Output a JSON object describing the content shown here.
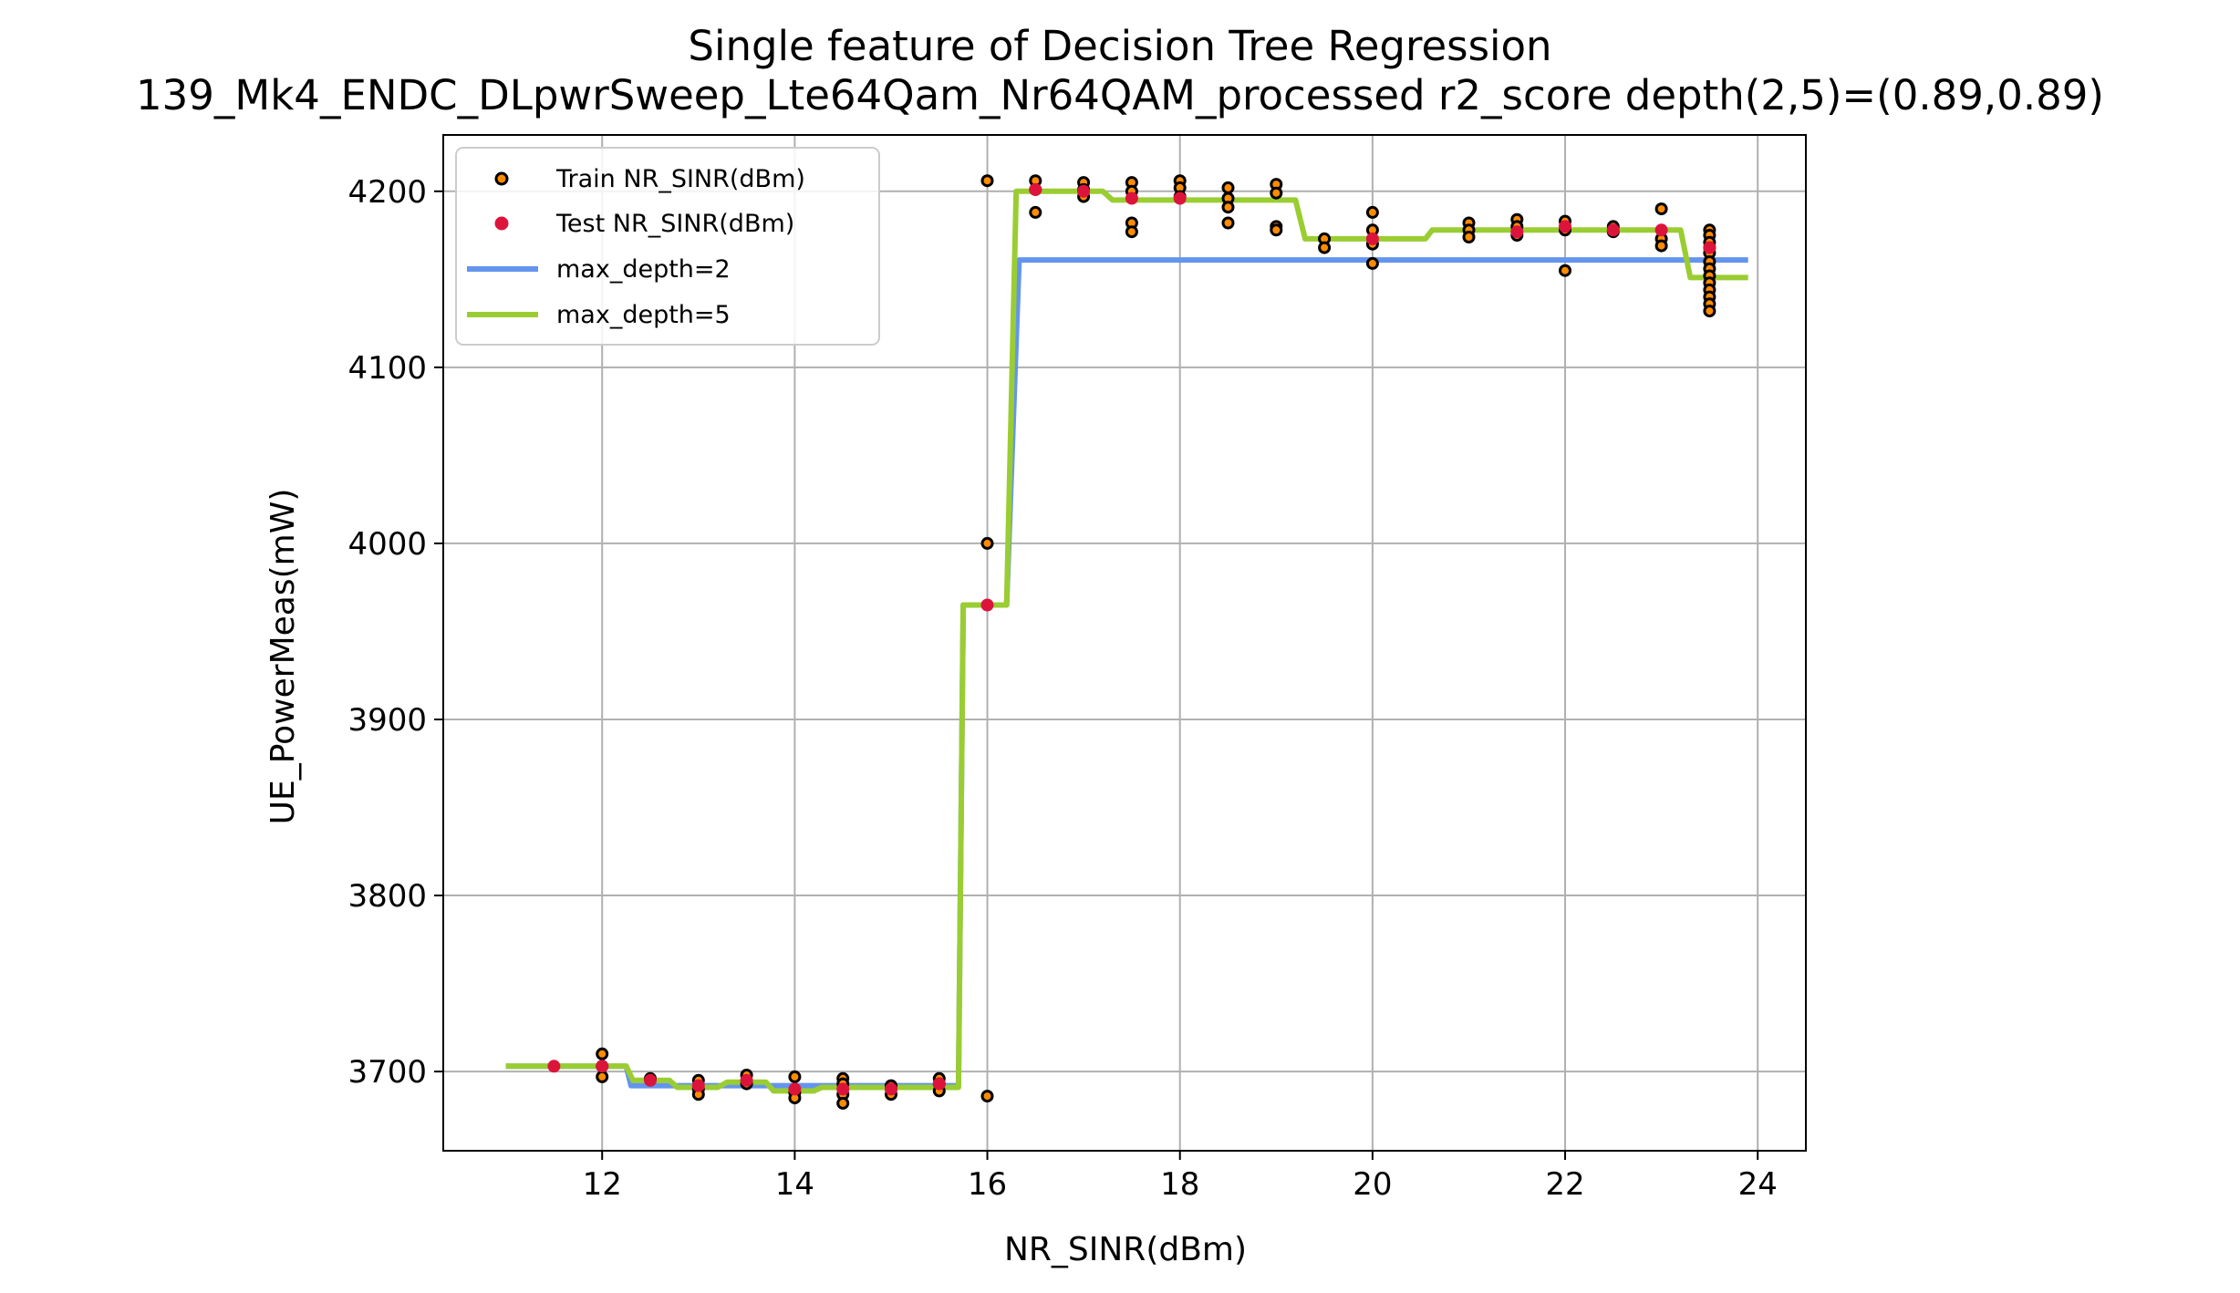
{
  "chart_data": {
    "type": "scatter",
    "title": "Single feature of Decision Tree Regression",
    "subtitle": "139_Mk4_ENDC_DLpwrSweep_Lte64Qam_Nr64QAM_processed r2_score depth(2,5)=(0.89,0.89)",
    "xlabel": "NR_SINR(dBm)",
    "ylabel": "UE_PowerMeas(mW)",
    "xlim": [
      10.35,
      24.5
    ],
    "ylim": [
      3655,
      4232
    ],
    "xticks": [
      12,
      14,
      16,
      18,
      20,
      22,
      24
    ],
    "yticks": [
      3700,
      3800,
      3900,
      4000,
      4100,
      4200
    ],
    "grid": true,
    "legend_position": "top-left",
    "legend": [
      {
        "label": "Train NR_SINR(dBm)",
        "kind": "marker",
        "color": "#ff8c00"
      },
      {
        "label": "Test NR_SINR(dBm)",
        "kind": "marker",
        "color": "#dc143c"
      },
      {
        "label": "max_depth=2",
        "kind": "line",
        "color": "#6495ed"
      },
      {
        "label": "max_depth=5",
        "kind": "line",
        "color": "#9acd32"
      }
    ],
    "series": [
      {
        "name": "Train NR_SINR(dBm)",
        "kind": "scatter",
        "color": "#ff8c00",
        "edgecolor": "#000000",
        "points": [
          [
            12.0,
            3710
          ],
          [
            12.0,
            3703
          ],
          [
            12.0,
            3697
          ],
          [
            12.5,
            3696
          ],
          [
            13.0,
            3695
          ],
          [
            13.0,
            3690
          ],
          [
            13.0,
            3687
          ],
          [
            13.5,
            3698
          ],
          [
            13.5,
            3693
          ],
          [
            14.0,
            3697
          ],
          [
            14.0,
            3688
          ],
          [
            14.0,
            3685
          ],
          [
            14.5,
            3696
          ],
          [
            14.5,
            3693
          ],
          [
            14.5,
            3687
          ],
          [
            14.5,
            3682
          ],
          [
            15.0,
            3692
          ],
          [
            15.0,
            3690
          ],
          [
            15.0,
            3687
          ],
          [
            15.5,
            3696
          ],
          [
            15.5,
            3693
          ],
          [
            15.5,
            3689
          ],
          [
            16.0,
            4206
          ],
          [
            16.0,
            4000
          ],
          [
            16.0,
            3686
          ],
          [
            16.5,
            4206
          ],
          [
            16.5,
            4201
          ],
          [
            16.5,
            4188
          ],
          [
            17.0,
            4205
          ],
          [
            17.0,
            4201
          ],
          [
            17.0,
            4197
          ],
          [
            17.5,
            4205
          ],
          [
            17.5,
            4200
          ],
          [
            17.5,
            4182
          ],
          [
            17.5,
            4177
          ],
          [
            18.0,
            4206
          ],
          [
            18.0,
            4202
          ],
          [
            18.0,
            4197
          ],
          [
            18.5,
            4202
          ],
          [
            18.5,
            4196
          ],
          [
            18.5,
            4191
          ],
          [
            18.5,
            4182
          ],
          [
            19.0,
            4204
          ],
          [
            19.0,
            4199
          ],
          [
            19.0,
            4180
          ],
          [
            19.0,
            4178
          ],
          [
            19.5,
            4173
          ],
          [
            19.5,
            4168
          ],
          [
            20.0,
            4188
          ],
          [
            20.0,
            4178
          ],
          [
            20.0,
            4170
          ],
          [
            20.0,
            4159
          ],
          [
            21.0,
            4182
          ],
          [
            21.0,
            4178
          ],
          [
            21.0,
            4174
          ],
          [
            21.5,
            4184
          ],
          [
            21.5,
            4180
          ],
          [
            21.5,
            4175
          ],
          [
            22.0,
            4183
          ],
          [
            22.0,
            4178
          ],
          [
            22.0,
            4155
          ],
          [
            22.5,
            4180
          ],
          [
            22.5,
            4177
          ],
          [
            23.0,
            4190
          ],
          [
            23.0,
            4173
          ],
          [
            23.0,
            4169
          ],
          [
            23.5,
            4178
          ],
          [
            23.5,
            4175
          ],
          [
            23.5,
            4171
          ],
          [
            23.5,
            4168
          ],
          [
            23.5,
            4165
          ],
          [
            23.5,
            4160
          ],
          [
            23.5,
            4156
          ],
          [
            23.5,
            4152
          ],
          [
            23.5,
            4148
          ],
          [
            23.5,
            4144
          ],
          [
            23.5,
            4140
          ],
          [
            23.5,
            4136
          ],
          [
            23.5,
            4132
          ]
        ]
      },
      {
        "name": "Test NR_SINR(dBm)",
        "kind": "scatter",
        "color": "#dc143c",
        "edgecolor": "#dc143c",
        "points": [
          [
            11.5,
            3703
          ],
          [
            12.0,
            3703
          ],
          [
            12.5,
            3695
          ],
          [
            13.0,
            3692
          ],
          [
            13.5,
            3695
          ],
          [
            14.0,
            3690
          ],
          [
            14.5,
            3690
          ],
          [
            15.0,
            3690
          ],
          [
            15.5,
            3693
          ],
          [
            16.0,
            3965
          ],
          [
            16.5,
            4201
          ],
          [
            17.0,
            4200
          ],
          [
            17.5,
            4196
          ],
          [
            18.0,
            4196
          ],
          [
            20.0,
            4173
          ],
          [
            21.5,
            4177
          ],
          [
            22.0,
            4180
          ],
          [
            22.5,
            4178
          ],
          [
            23.0,
            4178
          ],
          [
            23.5,
            4168
          ]
        ]
      },
      {
        "name": "max_depth=2",
        "kind": "line",
        "color": "#6495ed",
        "points": [
          [
            11.0,
            3703
          ],
          [
            12.25,
            3703
          ],
          [
            12.3,
            3692
          ],
          [
            15.7,
            3692
          ],
          [
            15.75,
            3965
          ],
          [
            16.2,
            3965
          ],
          [
            16.33,
            4161
          ],
          [
            23.9,
            4161
          ]
        ]
      },
      {
        "name": "max_depth=5",
        "kind": "line",
        "color": "#9acd32",
        "points": [
          [
            11.0,
            3703
          ],
          [
            12.25,
            3703
          ],
          [
            12.32,
            3695
          ],
          [
            12.7,
            3695
          ],
          [
            12.78,
            3691
          ],
          [
            13.2,
            3691
          ],
          [
            13.3,
            3694
          ],
          [
            13.7,
            3694
          ],
          [
            13.78,
            3689
          ],
          [
            14.2,
            3689
          ],
          [
            14.28,
            3691
          ],
          [
            15.7,
            3691
          ],
          [
            15.75,
            3965
          ],
          [
            16.2,
            3965
          ],
          [
            16.3,
            4200
          ],
          [
            17.2,
            4200
          ],
          [
            17.3,
            4195
          ],
          [
            19.2,
            4195
          ],
          [
            19.3,
            4173
          ],
          [
            20.55,
            4173
          ],
          [
            20.62,
            4178
          ],
          [
            23.2,
            4178
          ],
          [
            23.3,
            4151
          ],
          [
            23.9,
            4151
          ]
        ]
      }
    ]
  }
}
